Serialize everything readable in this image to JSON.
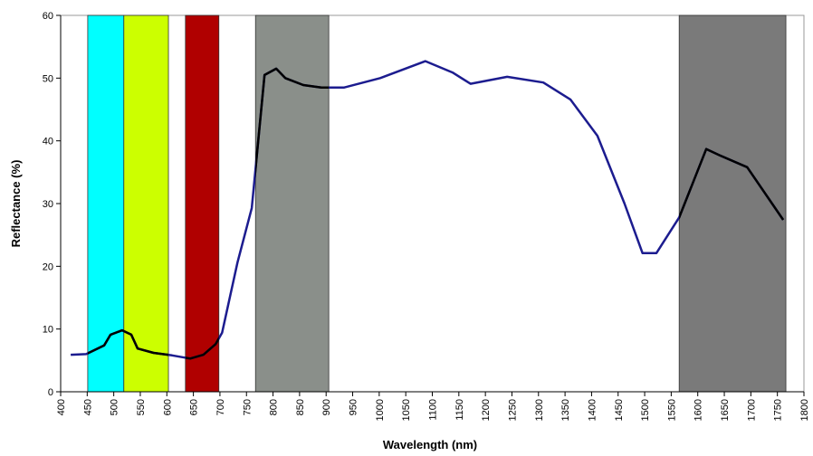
{
  "chart_data": {
    "type": "line",
    "xlabel": "Wavelength (nm)",
    "ylabel": "Reflectance (%)",
    "xlim": [
      400,
      1800
    ],
    "ylim": [
      0,
      60
    ],
    "xticks": [
      400,
      450,
      500,
      550,
      600,
      650,
      700,
      750,
      800,
      850,
      900,
      950,
      1000,
      1050,
      1100,
      1150,
      1200,
      1250,
      1300,
      1350,
      1400,
      1450,
      1500,
      1550,
      1600,
      1650,
      1700,
      1750,
      1800
    ],
    "yticks": [
      0,
      10,
      20,
      30,
      40,
      50,
      60
    ],
    "color": "#1c1c8f",
    "band_line_color": "#000000",
    "bands": [
      {
        "xlim": [
          451,
          519
        ],
        "color": "#00ffff"
      },
      {
        "xlim": [
          519,
          603
        ],
        "color": "#ccff00"
      },
      {
        "xlim": [
          635,
          698
        ],
        "color": "#b00000"
      },
      {
        "xlim": [
          767,
          905
        ],
        "color": "#8a8f8a"
      },
      {
        "xlim": [
          1565,
          1766
        ],
        "color": "#7a7a7a"
      }
    ],
    "x": [
      419,
      448,
      482,
      494,
      516,
      533,
      545,
      575,
      610,
      644,
      669,
      692,
      704,
      733,
      760,
      784,
      806,
      823,
      857,
      891,
      934,
      1002,
      1087,
      1138,
      1172,
      1241,
      1309,
      1360,
      1411,
      1462,
      1496,
      1522,
      1565,
      1616,
      1641,
      1693,
      1761
    ],
    "values": [
      5.9,
      6,
      7.4,
      9.1,
      9.8,
      9.1,
      6.9,
      6.2,
      5.8,
      5.3,
      5.9,
      7.6,
      9.4,
      20.6,
      29.3,
      50.5,
      51.5,
      50,
      48.9,
      48.5,
      48.5,
      50,
      52.7,
      50.9,
      49.1,
      50.2,
      49.3,
      46.6,
      40.8,
      30,
      22.1,
      22.1,
      27.8,
      38.7,
      37.7,
      35.8,
      27.4
    ]
  }
}
